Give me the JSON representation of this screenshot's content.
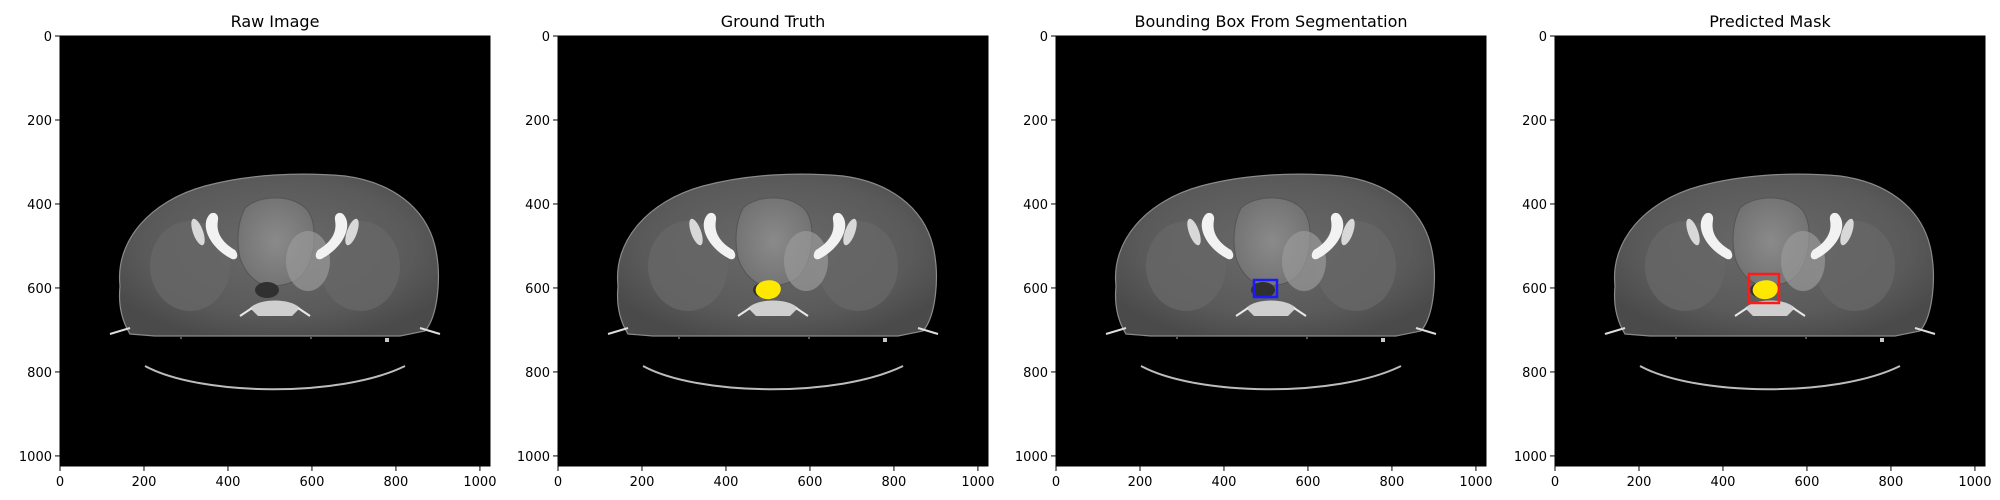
{
  "figure": {
    "panels": [
      {
        "title": "Raw Image",
        "overlay": "none"
      },
      {
        "title": "Ground Truth",
        "overlay": "mask"
      },
      {
        "title": "Bounding Box From Segmentation",
        "overlay": "box"
      },
      {
        "title": "Predicted Mask",
        "overlay": "mask+box"
      }
    ],
    "x_ticks": [
      "0",
      "200",
      "400",
      "600",
      "800",
      "1000"
    ],
    "y_ticks": [
      "0",
      "200",
      "400",
      "600",
      "800",
      "1000"
    ],
    "image_extent": [
      0,
      1024
    ],
    "colors": {
      "mask": "#ffe800",
      "seg_box": "#1a1aff",
      "pred_box": "#ff1a1a",
      "background": "#000000"
    }
  }
}
